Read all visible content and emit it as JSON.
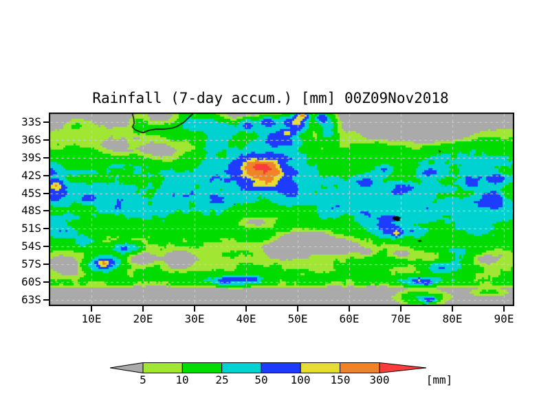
{
  "title": "Rainfall (7-day accum.) [mm] 00Z09Nov2018",
  "axes": {
    "lat_ticks": [
      "33S",
      "36S",
      "39S",
      "42S",
      "45S",
      "48S",
      "51S",
      "54S",
      "57S",
      "60S",
      "63S"
    ],
    "lon_ticks": [
      "10E",
      "20E",
      "30E",
      "40E",
      "50E",
      "60E",
      "70E",
      "80E",
      "90E"
    ]
  },
  "colorbar": {
    "labels": [
      "5",
      "10",
      "25",
      "50",
      "100",
      "150",
      "300"
    ],
    "unit_label": "[mm]",
    "below_min_color": "#aaaaaa",
    "segment_colors": [
      "#a0e632",
      "#00dc00",
      "#00d2d2",
      "#1e3cff",
      "#e6dc32",
      "#f08228"
    ],
    "above_max_color": "#fa3c3c"
  },
  "chart_data": {
    "type": "heatmap",
    "title": "Rainfall (7-day accum.) [mm] 00Z09Nov2018",
    "units": "mm",
    "valid_time": "00Z09Nov2018",
    "accumulation": "7-day",
    "lon_range_deg_e": [
      1.7,
      92
    ],
    "lat_range_deg_s": [
      31.4,
      64
    ],
    "lat_tick_step_deg": 3,
    "lon_tick_step_deg": 10,
    "grid_dashed": true,
    "grid_color": "#cfcfcf",
    "levels_mm": [
      5,
      10,
      25,
      50,
      100,
      150,
      300
    ],
    "palette": [
      "#aaaaaa",
      "#a0e632",
      "#00dc00",
      "#00d2d2",
      "#1e3cff",
      "#e6dc32",
      "#f08228",
      "#fa3c3c"
    ],
    "background_below_5mm": "#aaaaaa",
    "base_lat_profile": [
      [
        31.4,
        2.5
      ],
      [
        34,
        4
      ],
      [
        36,
        8
      ],
      [
        38,
        15
      ],
      [
        40,
        19
      ],
      [
        43,
        22
      ],
      [
        46,
        23
      ],
      [
        49,
        20
      ],
      [
        52,
        15
      ],
      [
        54,
        11
      ],
      [
        56,
        8
      ],
      [
        58,
        10
      ],
      [
        59.5,
        12
      ],
      [
        60.4,
        10
      ],
      [
        61,
        2
      ],
      [
        64,
        1.5
      ]
    ],
    "features": [
      [
        43.0,
        41.4,
        2.6,
        1.5,
        230
      ],
      [
        42.8,
        41.3,
        4.2,
        2.4,
        80
      ],
      [
        43.0,
        41.2,
        6.5,
        3.6,
        45
      ],
      [
        46.5,
        35.5,
        3.5,
        2.2,
        55
      ],
      [
        49.5,
        33.0,
        2.5,
        1.5,
        55
      ],
      [
        48.0,
        34.8,
        1.2,
        0.8,
        55
      ],
      [
        50.0,
        33.2,
        1.0,
        0.7,
        50
      ],
      [
        50.8,
        31.8,
        1.0,
        0.6,
        130
      ],
      [
        54.6,
        32.3,
        0.9,
        0.6,
        70
      ],
      [
        44.0,
        33.0,
        1.5,
        1.0,
        45
      ],
      [
        40.3,
        33.6,
        1.6,
        1.0,
        50
      ],
      [
        36.5,
        34.5,
        2.0,
        1.3,
        30
      ],
      [
        33.5,
        36.5,
        2.0,
        1.5,
        28
      ],
      [
        55.8,
        33.5,
        1.5,
        2.0,
        35
      ],
      [
        3.2,
        43.6,
        1.0,
        0.7,
        90
      ],
      [
        3.0,
        44.6,
        2.8,
        1.8,
        45
      ],
      [
        9.6,
        45.8,
        1.4,
        0.6,
        55
      ],
      [
        2.5,
        41.5,
        1.8,
        1.2,
        28
      ],
      [
        27,
        45,
        5,
        2.5,
        22
      ],
      [
        16,
        46.5,
        4,
        2,
        20
      ],
      [
        34,
        46.5,
        3,
        1.8,
        22
      ],
      [
        50,
        44,
        4,
        2,
        20
      ],
      [
        57,
        46.5,
        3.5,
        2,
        22
      ],
      [
        74,
        47,
        5,
        2.5,
        20
      ],
      [
        84,
        49.5,
        5,
        2.5,
        20
      ],
      [
        33,
        42.5,
        3,
        1.5,
        25
      ],
      [
        63,
        43.3,
        2.5,
        1.2,
        40
      ],
      [
        70,
        44.2,
        2.0,
        1.0,
        38
      ],
      [
        75.5,
        41.5,
        1.8,
        0.9,
        35
      ],
      [
        66.5,
        41.0,
        1.5,
        0.8,
        35
      ],
      [
        87.5,
        46.3,
        2.5,
        1.5,
        45
      ],
      [
        88.5,
        42.5,
        1.8,
        1.0,
        40
      ],
      [
        84,
        42.8,
        2.0,
        1.2,
        30
      ],
      [
        67.5,
        50.3,
        3.0,
        1.8,
        50
      ],
      [
        69.2,
        51.8,
        0.9,
        0.6,
        70
      ],
      [
        73,
        51.5,
        2.0,
        1.0,
        30
      ],
      [
        63,
        48.5,
        2.0,
        1.2,
        35
      ],
      [
        4,
        51.5,
        2.5,
        1.3,
        40
      ],
      [
        9,
        53,
        2,
        1,
        35
      ],
      [
        17,
        54.3,
        2.2,
        0.8,
        45
      ],
      [
        12.6,
        57.1,
        1.2,
        0.7,
        120
      ],
      [
        12.5,
        57.0,
        3.0,
        1.3,
        45
      ],
      [
        36,
        59.7,
        2.2,
        0.5,
        70
      ],
      [
        40.5,
        59.5,
        1.8,
        0.5,
        60
      ],
      [
        38,
        59.6,
        4.5,
        1.0,
        35
      ],
      [
        74,
        59.9,
        5,
        0.7,
        45
      ],
      [
        75,
        60.0,
        1.0,
        0.4,
        60
      ],
      [
        73.5,
        59.85,
        0.8,
        0.4,
        50
      ],
      [
        74,
        62.7,
        4,
        1.0,
        25
      ],
      [
        75.5,
        62.9,
        1.2,
        0.5,
        45
      ],
      [
        87,
        61.7,
        3,
        0.6,
        10
      ],
      [
        78,
        57.5,
        2.5,
        0.9,
        40
      ],
      [
        81,
        55.5,
        4,
        2,
        18
      ],
      [
        65,
        56.5,
        3,
        1.5,
        15
      ],
      [
        24,
        34.6,
        4.5,
        1.2,
        14
      ],
      [
        19.5,
        33.5,
        1.5,
        1.5,
        10
      ],
      [
        29,
        33,
        2.5,
        2,
        18
      ],
      [
        33,
        34,
        2.5,
        2.5,
        22
      ],
      [
        7,
        33.5,
        2,
        1,
        8
      ],
      [
        86,
        37.5,
        5,
        2.5,
        10
      ],
      [
        81,
        39.5,
        6,
        2.5,
        8
      ],
      [
        42,
        49.8,
        5.5,
        1.3,
        -16
      ],
      [
        52,
        52.5,
        6,
        1.5,
        -16
      ],
      [
        48,
        54.5,
        5,
        1.5,
        -14
      ],
      [
        58,
        54,
        5,
        1.2,
        -12
      ],
      [
        27,
        56,
        3,
        1.5,
        -12
      ],
      [
        20,
        56,
        2.5,
        1.2,
        -10
      ],
      [
        5.5,
        57.5,
        3,
        1.5,
        -12
      ],
      [
        76,
        35.3,
        11,
        1.8,
        -9
      ],
      [
        23,
        38.2,
        5,
        2,
        -13
      ],
      [
        14,
        37.5,
        3.5,
        1.5,
        -9
      ],
      [
        35,
        38.2,
        2,
        1,
        -10
      ],
      [
        64,
        55.3,
        2.5,
        1,
        -10
      ],
      [
        78,
        56.5,
        3,
        1.2,
        -10
      ],
      [
        85.5,
        56,
        3,
        1.2,
        -10
      ],
      [
        70,
        55,
        2,
        0.8,
        -8
      ]
    ],
    "coastline_south_africa": [
      [
        17.9,
        31.4
      ],
      [
        18.2,
        32.4
      ],
      [
        18.3,
        33.2
      ],
      [
        17.95,
        33.8
      ],
      [
        18.45,
        34.3
      ],
      [
        19.2,
        34.55
      ],
      [
        20.0,
        34.8
      ],
      [
        21.1,
        34.4
      ],
      [
        22.6,
        34.15
      ],
      [
        24.0,
        34.2
      ],
      [
        25.7,
        34.0
      ],
      [
        26.5,
        33.75
      ],
      [
        27.9,
        33.05
      ],
      [
        28.9,
        32.2
      ],
      [
        29.9,
        31.4
      ]
    ],
    "islands": [
      {
        "name": "kerguelen",
        "outline": [
          [
            68.5,
            49.0
          ],
          [
            69.3,
            48.85
          ],
          [
            70.1,
            49.15
          ],
          [
            69.7,
            49.4
          ],
          [
            70.0,
            49.6
          ],
          [
            69.3,
            49.75
          ],
          [
            68.8,
            49.55
          ],
          [
            68.4,
            49.3
          ]
        ]
      },
      {
        "name": "heard",
        "outline": [
          [
            73.2,
            53.0
          ],
          [
            73.8,
            52.9
          ],
          [
            74.1,
            53.1
          ],
          [
            73.6,
            53.2
          ]
        ]
      },
      {
        "name": "amsterdam",
        "outline": [
          [
            77.35,
            37.7
          ],
          [
            77.8,
            37.95
          ],
          [
            77.45,
            38.15
          ]
        ]
      },
      {
        "name": "prince-edward",
        "outline": [
          [
            37.6,
            46.8
          ],
          [
            37.95,
            46.75
          ],
          [
            37.85,
            47.0
          ]
        ]
      }
    ]
  }
}
